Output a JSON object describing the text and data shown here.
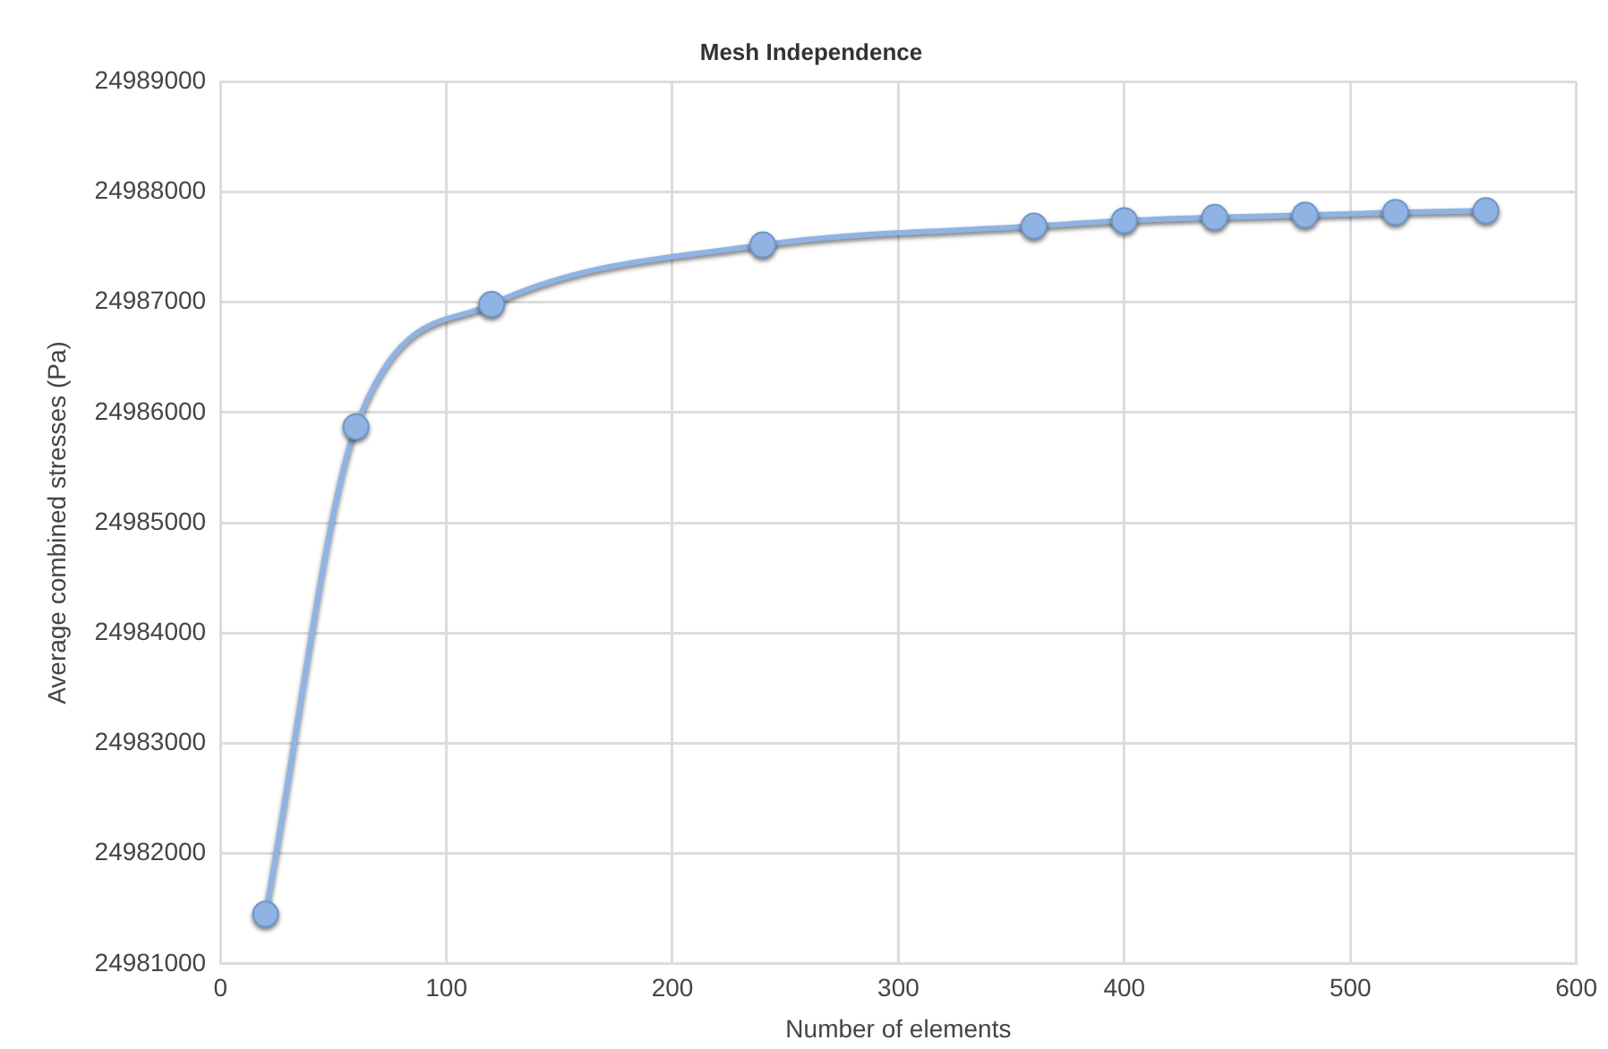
{
  "chart_data": {
    "type": "line",
    "title": "Mesh Independence",
    "xlabel": "Number of elements",
    "ylabel": "Average combined stresses (Pa)",
    "x": [
      20,
      60,
      120,
      240,
      360,
      400,
      440,
      480,
      520,
      560
    ],
    "series": [
      {
        "color": "#8fb4e3",
        "values": [
          24981450,
          24985870,
          24986980,
          24987520,
          24987690,
          24987740,
          24987770,
          24987790,
          24987815,
          24987830
        ]
      }
    ],
    "xlim": [
      0,
      600
    ],
    "xticks": [
      0,
      100,
      200,
      300,
      400,
      500,
      600
    ],
    "ylim": [
      24981000,
      24989000
    ],
    "yticks": [
      24981000,
      24982000,
      24983000,
      24984000,
      24985000,
      24986000,
      24987000,
      24988000,
      24989000
    ],
    "grid": true,
    "legend": false,
    "marker": "circle",
    "line_style": "solid"
  }
}
